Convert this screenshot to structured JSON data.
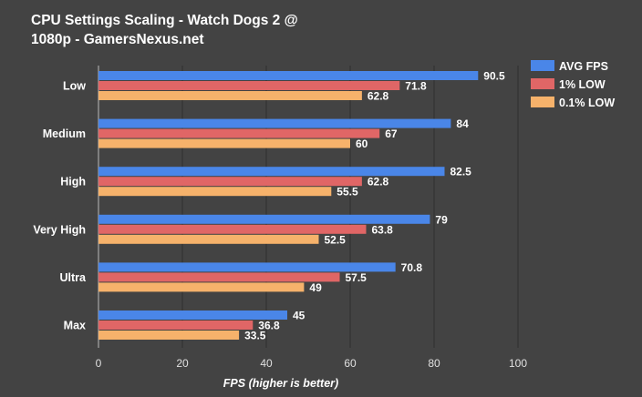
{
  "chart_data": {
    "type": "bar",
    "orientation": "horizontal",
    "title": "CPU Settings Scaling - Watch Dogs 2 @ 1080p - GamersNexus.net",
    "xlabel": "FPS (higher is better)",
    "ylabel": "",
    "xlim": [
      0,
      100
    ],
    "xticks": [
      "0",
      "20",
      "40",
      "60",
      "80",
      "100"
    ],
    "grid": true,
    "legend_position": "top-right",
    "categories": [
      "Low",
      "Medium",
      "High",
      "Very High",
      "Ultra",
      "Max"
    ],
    "series": [
      {
        "name": "AVG FPS",
        "color": "#4a86e8",
        "values": [
          90.5,
          84,
          82.5,
          79,
          70.8,
          45
        ]
      },
      {
        "name": "1% LOW",
        "color": "#e06666",
        "values": [
          71.8,
          67,
          62.8,
          63.8,
          57.5,
          36.8
        ]
      },
      {
        "name": "0.1% LOW",
        "color": "#f6b26b",
        "values": [
          62.8,
          60,
          55.5,
          52.5,
          49,
          33.5
        ]
      }
    ]
  }
}
